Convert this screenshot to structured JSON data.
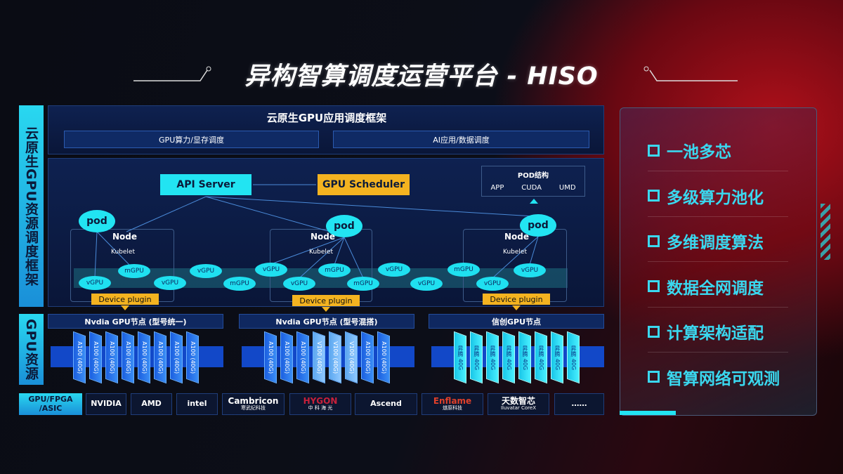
{
  "title": "异构智算调度运营平台 - HISO",
  "side_labels": {
    "framework": "云原生GPU资源调度框架",
    "resources": "GPU资源"
  },
  "framework": {
    "title": "云原生GPU应用调度框架",
    "left": "GPU算力/显存调度",
    "right": "AI应用/数据调度"
  },
  "diagram": {
    "api_server": "API Server",
    "gpu_scheduler": "GPU Scheduler",
    "pod_structure": {
      "title": "POD结构",
      "items": [
        "APP",
        "CUDA",
        "UMD"
      ]
    },
    "pod": "pod",
    "node": "Node",
    "kubelet": "Kubelet",
    "device_plugin": "Device plugin",
    "units": [
      "vGPU",
      "mGPU",
      "vGPU",
      "vGPU",
      "mGPU",
      "vGPU",
      "vGPU",
      "mGPU",
      "mGPU",
      "vGPU",
      "vGPU",
      "mGPU",
      "vGPU",
      "vGPU"
    ]
  },
  "gpu_groups": [
    {
      "title": "Nvdia GPU节点 (型号统一)",
      "cards": [
        "A100 (40G)",
        "A100 (40G)",
        "A100 (40G)",
        "A100 (40G)",
        "A100 (40G)",
        "A100 (40G)",
        "A100 (40G)",
        "A100 (40G)"
      ]
    },
    {
      "title": "Nvdia GPU节点 (型号混搭)",
      "cards": [
        "A100 (40G)",
        "A100 (40G)",
        "A100 (40G)",
        "V100 (40G)",
        "V100 (40G)",
        "V100 (40G)",
        "A100 (40G)",
        "A100 (40G)"
      ]
    },
    {
      "title": "信创GPU节点",
      "cards": [
        "昇腾 40G",
        "昇腾 40G",
        "昇腾 40G",
        "昇腾 40G",
        "昇腾 40G",
        "昇腾 40G",
        "昇腾 40G",
        "昇腾 40G"
      ]
    }
  ],
  "vendors": {
    "label": "GPU/FPGA /ASIC",
    "items": [
      {
        "name": "NVIDIA"
      },
      {
        "name": "AMD"
      },
      {
        "name": "intel"
      },
      {
        "name": "Cambricon",
        "sub": "寒武纪科技"
      },
      {
        "name": "HYGON",
        "sub": "中 科 海 光"
      },
      {
        "name": "Ascend"
      },
      {
        "name": "Enflame",
        "sub": "燧原科技"
      },
      {
        "name": "天数智芯",
        "sub": "Iluvatar CoreX"
      },
      {
        "name": "……"
      }
    ]
  },
  "features": [
    "一池多芯",
    "多级算力池化",
    "多维调度算法",
    "数据全网调度",
    "计算架构适配",
    "智算网络可观测"
  ],
  "colors": {
    "cyan": "#22e4f2",
    "orange": "#f4b320",
    "blue": "#1b5fe0",
    "red_bg": "#b0101a"
  }
}
